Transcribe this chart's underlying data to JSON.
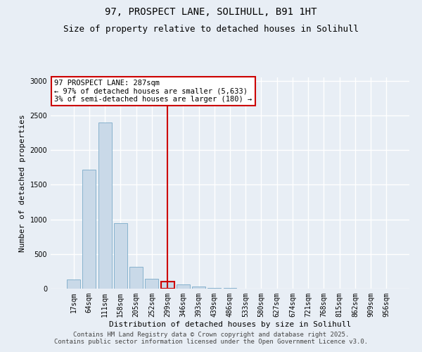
{
  "title_line1": "97, PROSPECT LANE, SOLIHULL, B91 1HT",
  "title_line2": "Size of property relative to detached houses in Solihull",
  "xlabel": "Distribution of detached houses by size in Solihull",
  "ylabel": "Number of detached properties",
  "categories": [
    "17sqm",
    "64sqm",
    "111sqm",
    "158sqm",
    "205sqm",
    "252sqm",
    "299sqm",
    "346sqm",
    "393sqm",
    "439sqm",
    "486sqm",
    "533sqm",
    "580sqm",
    "627sqm",
    "674sqm",
    "721sqm",
    "768sqm",
    "815sqm",
    "862sqm",
    "909sqm",
    "956sqm"
  ],
  "values": [
    130,
    1720,
    2400,
    950,
    320,
    140,
    100,
    60,
    30,
    15,
    8,
    3,
    2,
    1,
    0,
    0,
    0,
    0,
    0,
    0,
    0
  ],
  "bar_color": "#c9d9e8",
  "bar_edge_color": "#7aaac8",
  "highlight_bar_index": 6,
  "highlight_edge_color": "#cc0000",
  "vline_color": "#cc0000",
  "vline_linewidth": 1.5,
  "annotation_text": "97 PROSPECT LANE: 287sqm\n← 97% of detached houses are smaller (5,633)\n3% of semi-detached houses are larger (180) →",
  "annotation_box_color": "#ffffff",
  "annotation_box_edge_color": "#cc0000",
  "annotation_fontsize": 7.5,
  "ylim": [
    0,
    3000
  ],
  "ylim_display": 3050,
  "yticks": [
    0,
    500,
    1000,
    1500,
    2000,
    2500,
    3000
  ],
  "background_color": "#e8eef5",
  "grid_color": "#ffffff",
  "footer_line1": "Contains HM Land Registry data © Crown copyright and database right 2025.",
  "footer_line2": "Contains public sector information licensed under the Open Government Licence v3.0.",
  "title_fontsize": 10,
  "subtitle_fontsize": 9,
  "axis_label_fontsize": 8,
  "tick_fontsize": 7,
  "footer_fontsize": 6.5
}
